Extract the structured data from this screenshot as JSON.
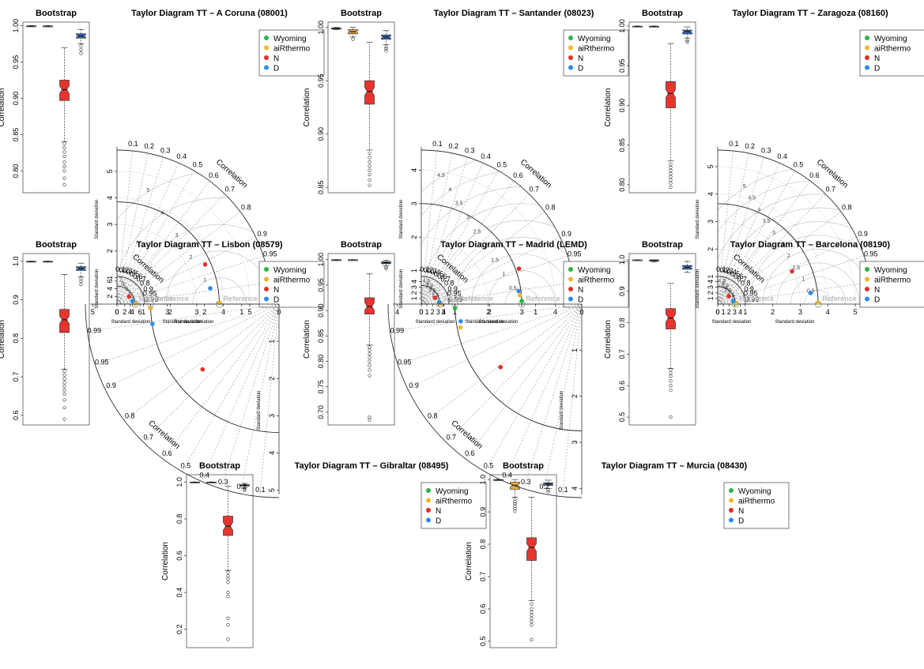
{
  "figure": {
    "palette": {
      "wyoming": "#2ab34a",
      "airthermo": "#f3b52a",
      "n": "#e0302c",
      "d": "#2b8ce6",
      "box_red": "#e8342f",
      "box_blue": "#2f66b5",
      "box_orange": "#f2a83a",
      "grid": "#c8c8c8"
    },
    "legend": [
      {
        "key": "wyoming",
        "label": "Wyoming"
      },
      {
        "key": "airthermo",
        "label": "aiRthermo"
      },
      {
        "key": "n",
        "label": "N"
      },
      {
        "key": "d",
        "label": "D"
      }
    ]
  },
  "chart_data": [
    {
      "type": "box",
      "title": "Bootstrap",
      "ylabel": "Correlation",
      "ylim": [
        0.77,
        1.005
      ],
      "yticks": [
        0.8,
        0.85,
        0.9,
        0.95,
        1.0
      ],
      "boxes": [
        {
          "name": "Wyoming",
          "color": "#ffffff",
          "q1": 0.9995,
          "median": 0.9997,
          "q3": 0.9999,
          "whisker_low": 0.999,
          "whisker_high": 1.0
        },
        {
          "name": "aiRthermo",
          "color": "#ffffff",
          "q1": 0.9994,
          "median": 0.9996,
          "q3": 0.9998,
          "whisker_low": 0.999,
          "whisker_high": 1.0
        },
        {
          "name": "N",
          "color": "#e8342f",
          "q1": 0.897,
          "median": 0.912,
          "q3": 0.925,
          "whisker_low": 0.84,
          "whisker_high": 0.97,
          "outliers": [
            0.838,
            0.832,
            0.826,
            0.82,
            0.812,
            0.806,
            0.8,
            0.79,
            0.781
          ]
        },
        {
          "name": "D",
          "color": "#2f66b5",
          "q1": 0.983,
          "median": 0.986,
          "q3": 0.989,
          "whisker_low": 0.975,
          "whisker_high": 0.995,
          "outliers": [
            0.972,
            0.967,
            0.962
          ]
        }
      ]
    },
    {
      "type": "taylor",
      "title": "Taylor Diagram TT – A Coruna (08001)",
      "xlabel": "Standard deviation",
      "ylabel": "Standard deviation",
      "max_sd": 5.8,
      "sd_ticks": [
        0,
        1,
        2,
        3,
        4,
        5
      ],
      "reference_sd": 3.85,
      "rmsd_labels": [
        1,
        2,
        3,
        4,
        5
      ],
      "reference_label": "Reference",
      "correlation_label": "Correlation",
      "points": [
        {
          "series": "Wyoming",
          "sd": 3.84,
          "cor": 0.9999
        },
        {
          "series": "aiRthermo",
          "sd": 3.85,
          "cor": 0.9999
        },
        {
          "series": "N",
          "sd": 3.64,
          "cor": 0.912
        },
        {
          "series": "D",
          "sd": 3.56,
          "cor": 0.986
        }
      ]
    },
    {
      "type": "box",
      "title": "Bootstrap",
      "ylabel": "Correlation",
      "ylim": [
        0.845,
        1.005
      ],
      "yticks": [
        0.85,
        0.9,
        0.95,
        1.0
      ],
      "boxes": [
        {
          "name": "Wyoming",
          "color": "#ffffff",
          "q1": 0.9985,
          "median": 0.999,
          "q3": 0.9995,
          "whisker_low": 0.998,
          "whisker_high": 1.0
        },
        {
          "name": "aiRthermo",
          "color": "#f2a83a",
          "q1": 0.994,
          "median": 0.996,
          "q3": 0.998,
          "whisker_low": 0.991,
          "whisker_high": 1.0,
          "outliers": [
            0.989
          ]
        },
        {
          "name": "N",
          "color": "#e8342f",
          "q1": 0.928,
          "median": 0.94,
          "q3": 0.95,
          "whisker_low": 0.885,
          "whisker_high": 0.986,
          "outliers": [
            0.882,
            0.878,
            0.874,
            0.87,
            0.866,
            0.862,
            0.857,
            0.852
          ]
        },
        {
          "name": "D",
          "color": "#2f66b5",
          "q1": 0.989,
          "median": 0.991,
          "q3": 0.993,
          "whisker_low": 0.984,
          "whisker_high": 0.997,
          "outliers": [
            0.982,
            0.98,
            0.978
          ]
        }
      ]
    },
    {
      "type": "taylor",
      "title": "Taylor Diagram TT – Santander (08023)",
      "xlabel": "Standard deviation",
      "ylabel": "Standard deviation",
      "max_sd": 4.6,
      "sd_ticks": [
        0,
        1,
        2,
        3,
        4
      ],
      "reference_sd": 3.0,
      "rmsd_labels": [
        0.5,
        1,
        1.5,
        2,
        2.5,
        3,
        3.5,
        4,
        4.5
      ],
      "reference_label": "Reference",
      "correlation_label": "Correlation",
      "points": [
        {
          "series": "Wyoming",
          "sd": 3.0,
          "cor": 0.9995
        },
        {
          "series": "aiRthermo",
          "sd": 2.95,
          "cor": 0.996
        },
        {
          "series": "N",
          "sd": 3.1,
          "cor": 0.94
        },
        {
          "series": "D",
          "sd": 2.93,
          "cor": 0.991
        }
      ]
    },
    {
      "type": "box",
      "title": "Bootstrap",
      "ylabel": "Correlation",
      "ylim": [
        0.79,
        1.005
      ],
      "yticks": [
        0.8,
        0.85,
        0.9,
        0.95,
        1.0
      ],
      "boxes": [
        {
          "name": "Wyoming",
          "color": "#ffffff",
          "q1": 0.9995,
          "median": 0.9997,
          "q3": 0.9999,
          "whisker_low": 0.999,
          "whisker_high": 1.0
        },
        {
          "name": "aiRthermo",
          "color": "#ffffff",
          "q1": 0.9994,
          "median": 0.9996,
          "q3": 0.9998,
          "whisker_low": 0.999,
          "whisker_high": 1.0
        },
        {
          "name": "N",
          "color": "#e8342f",
          "q1": 0.897,
          "median": 0.915,
          "q3": 0.93,
          "whisker_low": 0.83,
          "whisker_high": 0.978,
          "outliers": [
            0.826,
            0.822,
            0.818,
            0.814,
            0.81,
            0.806,
            0.802,
            0.797
          ]
        },
        {
          "name": "D",
          "color": "#2f66b5",
          "q1": 0.99,
          "median": 0.993,
          "q3": 0.995,
          "whisker_low": 0.985,
          "whisker_high": 0.999,
          "outliers": [
            0.982,
            0.98
          ]
        }
      ]
    },
    {
      "type": "taylor",
      "title": "Taylor Diagram TT – Zaragoza (08160)",
      "xlabel": "Standard deviation",
      "ylabel": "Standard deviation",
      "max_sd": 5.6,
      "sd_ticks": [
        0,
        1,
        2,
        3,
        4,
        5
      ],
      "reference_sd": 3.65,
      "rmsd_labels": [
        0.5,
        1,
        1.5,
        2,
        2.5,
        3,
        3.5,
        4,
        4.5,
        5
      ],
      "reference_label": "Reference",
      "correlation_label": "Correlation",
      "points": [
        {
          "series": "Wyoming",
          "sd": 3.65,
          "cor": 0.9999
        },
        {
          "series": "aiRthermo",
          "sd": 3.66,
          "cor": 0.9999
        },
        {
          "series": "N",
          "sd": 2.95,
          "cor": 0.915
        },
        {
          "series": "D",
          "sd": 3.4,
          "cor": 0.993
        }
      ]
    },
    {
      "type": "box",
      "title": "Bootstrap",
      "ylabel": "Correlation",
      "ylim": [
        0.575,
        1.02
      ],
      "yticks": [
        0.6,
        0.7,
        0.8,
        0.9,
        1.0
      ],
      "boxes": [
        {
          "name": "Wyoming",
          "color": "#ffffff",
          "q1": 0.999,
          "median": 0.9995,
          "q3": 1.0,
          "whisker_low": 0.998,
          "whisker_high": 1.0
        },
        {
          "name": "aiRthermo",
          "color": "#ffffff",
          "q1": 0.999,
          "median": 0.9995,
          "q3": 1.0,
          "whisker_low": 0.998,
          "whisker_high": 1.0
        },
        {
          "name": "N",
          "color": "#e8342f",
          "q1": 0.815,
          "median": 0.848,
          "q3": 0.875,
          "whisker_low": 0.72,
          "whisker_high": 0.966,
          "outliers": [
            0.715,
            0.705,
            0.695,
            0.685,
            0.675,
            0.665,
            0.655,
            0.64,
            0.62,
            0.59
          ]
        },
        {
          "name": "D",
          "color": "#2f66b5",
          "q1": 0.976,
          "median": 0.981,
          "q3": 0.986,
          "whisker_low": 0.96,
          "whisker_high": 0.995,
          "outliers": [
            0.955,
            0.948,
            0.94
          ]
        }
      ]
    },
    {
      "type": "taylor",
      "title": "Taylor Diagram TT – Lisbon (08579)",
      "xlabel": "Standard deviation",
      "ylabel": "Standard deviation",
      "max_sd": 7.2,
      "sd_ticks": [
        0,
        2,
        4,
        6
      ],
      "reference_sd": 4.7,
      "rmsd_labels": [
        1,
        2,
        3,
        4,
        5,
        6,
        7
      ],
      "reference_label": "Reference",
      "correlation_label": "Correlation",
      "points": [
        {
          "series": "Wyoming",
          "sd": 4.7,
          "cor": 0.9995
        },
        {
          "series": "aiRthermo",
          "sd": 4.71,
          "cor": 0.9995
        },
        {
          "series": "N",
          "sd": 3.68,
          "cor": 0.848
        },
        {
          "series": "D",
          "sd": 4.08,
          "cor": 0.981
        }
      ]
    },
    {
      "type": "box",
      "title": "Bootstrap",
      "ylabel": "Correlation",
      "ylim": [
        0.675,
        1.012
      ],
      "yticks": [
        0.7,
        0.75,
        0.8,
        0.85,
        0.9,
        0.95,
        1.0
      ],
      "boxes": [
        {
          "name": "Wyoming",
          "color": "#ffffff",
          "q1": 0.9995,
          "median": 0.9997,
          "q3": 0.9999,
          "whisker_low": 0.999,
          "whisker_high": 1.0
        },
        {
          "name": "aiRthermo",
          "color": "#ffffff",
          "q1": 0.9994,
          "median": 0.9996,
          "q3": 0.9998,
          "whisker_low": 0.999,
          "whisker_high": 1.0
        },
        {
          "name": "N",
          "color": "#e8342f",
          "q1": 0.893,
          "median": 0.908,
          "q3": 0.925,
          "whisker_low": 0.832,
          "whisker_high": 0.972,
          "outliers": [
            0.828,
            0.822,
            0.815,
            0.808,
            0.8,
            0.792,
            0.783,
            0.772,
            0.69,
            0.685
          ]
        },
        {
          "name": "D",
          "color": "#2f66b5",
          "q1": 0.992,
          "median": 0.994,
          "q3": 0.996,
          "whisker_low": 0.988,
          "whisker_high": 0.999,
          "outliers": [
            0.985,
            0.982
          ]
        }
      ]
    },
    {
      "type": "taylor",
      "title": "Taylor Diagram TT – Madrid (LEMD)",
      "xlabel": "Standard deviation",
      "ylabel": "Standard deviation",
      "max_sd": 4.9,
      "sd_ticks": [
        0,
        1,
        2,
        3,
        4
      ],
      "reference_sd": 3.3,
      "rmsd_labels": [
        0.5,
        1,
        1.5,
        2,
        2.5,
        3,
        3.5,
        4,
        4.5
      ],
      "reference_label": "Reference",
      "correlation_label": "Correlation",
      "points": [
        {
          "series": "Wyoming",
          "sd": 3.3,
          "cor": 0.9997
        },
        {
          "series": "aiRthermo",
          "sd": 3.31,
          "cor": 0.9997
        },
        {
          "series": "N",
          "sd": 2.65,
          "cor": 0.908
        },
        {
          "series": "D",
          "sd": 3.2,
          "cor": 0.994
        }
      ]
    },
    {
      "type": "box",
      "title": "Bootstrap",
      "ylabel": "Correlation",
      "ylim": [
        0.475,
        1.02
      ],
      "yticks": [
        0.5,
        0.6,
        0.7,
        0.8,
        0.9,
        1.0
      ],
      "boxes": [
        {
          "name": "Wyoming",
          "color": "#ffffff",
          "q1": 0.999,
          "median": 0.9995,
          "q3": 1.0,
          "whisker_low": 0.998,
          "whisker_high": 1.0
        },
        {
          "name": "aiRthermo",
          "color": "#ffffff",
          "q1": 0.996,
          "median": 0.998,
          "q3": 0.9995,
          "whisker_low": 0.993,
          "whisker_high": 1.0
        },
        {
          "name": "N",
          "color": "#e8342f",
          "q1": 0.78,
          "median": 0.815,
          "q3": 0.845,
          "whisker_low": 0.655,
          "whisker_high": 0.925,
          "outliers": [
            0.65,
            0.64,
            0.63,
            0.615,
            0.6,
            0.585,
            0.5
          ]
        },
        {
          "name": "D",
          "color": "#2f66b5",
          "q1": 0.97,
          "median": 0.976,
          "q3": 0.982,
          "whisker_low": 0.96,
          "whisker_high": 0.995
        }
      ]
    },
    {
      "type": "taylor",
      "title": "Taylor Diagram TT – Barcelona (08190)",
      "xlabel": "Standard deviation",
      "ylabel": "Standard deviation",
      "max_sd": 4.9,
      "sd_ticks": [
        0,
        1,
        2,
        3,
        4
      ],
      "reference_sd": 3.15,
      "rmsd_labels": [
        0.5,
        1,
        1.5,
        2,
        2.5,
        3,
        3.5,
        4,
        4.5
      ],
      "reference_label": "Reference",
      "correlation_label": "Correlation",
      "points": [
        {
          "series": "Wyoming",
          "sd": 3.15,
          "cor": 0.9995
        },
        {
          "series": "aiRthermo",
          "sd": 3.14,
          "cor": 0.998
        },
        {
          "series": "N",
          "sd": 2.4,
          "cor": 0.815
        },
        {
          "series": "D",
          "sd": 2.8,
          "cor": 0.983
        }
      ]
    },
    {
      "type": "box",
      "title": "Bootstrap",
      "ylabel": "Correlation",
      "ylim": [
        0.1,
        1.04
      ],
      "yticks": [
        0.2,
        0.4,
        0.6,
        0.8,
        1.0
      ],
      "boxes": [
        {
          "name": "Wyoming",
          "color": "#ffffff",
          "q1": 0.999,
          "median": 0.9995,
          "q3": 1.0,
          "whisker_low": 0.998,
          "whisker_high": 1.0
        },
        {
          "name": "aiRthermo",
          "color": "#ffffff",
          "q1": 0.999,
          "median": 0.9995,
          "q3": 1.0,
          "whisker_low": 0.998,
          "whisker_high": 1.0
        },
        {
          "name": "N",
          "color": "#e8342f",
          "q1": 0.71,
          "median": 0.76,
          "q3": 0.815,
          "whisker_low": 0.52,
          "whisker_high": 0.978,
          "outliers": [
            0.51,
            0.49,
            0.475,
            0.455,
            0.4,
            0.38,
            0.26,
            0.225,
            0.145
          ]
        },
        {
          "name": "D",
          "color": "#2f66b5",
          "q1": 0.978,
          "median": 0.982,
          "q3": 0.986,
          "whisker_low": 0.97,
          "whisker_high": 0.993,
          "outliers": [
            0.962,
            0.955
          ]
        }
      ]
    },
    {
      "type": "taylor",
      "title": "Taylor Diagram TT – Gibraltar (08495)",
      "xlabel": "Standard deviation",
      "ylabel": "Standard deviation",
      "max_sd": 5.2,
      "sd_ticks": [
        0,
        1,
        2,
        3,
        4,
        5
      ],
      "reference_sd": 3.45,
      "rmsd_labels": [
        0.5,
        1,
        1.5,
        2,
        2.5,
        3,
        3.5,
        4,
        4.5,
        5
      ],
      "reference_label": "Reference",
      "correlation_label": "Correlation",
      "points": [
        {
          "series": "Wyoming",
          "sd": 3.45,
          "cor": 0.9995
        },
        {
          "series": "aiRthermo",
          "sd": 3.46,
          "cor": 0.9995
        },
        {
          "series": "N",
          "sd": 2.7,
          "cor": 0.76
        },
        {
          "series": "D",
          "sd": 3.44,
          "cor": 0.988
        }
      ]
    },
    {
      "type": "box",
      "title": "Bootstrap",
      "ylabel": "Correlation",
      "ylim": [
        0.48,
        1.015
      ],
      "yticks": [
        0.5,
        0.6,
        0.7,
        0.8,
        0.9,
        1.0
      ],
      "boxes": [
        {
          "name": "Wyoming",
          "color": "#ffffff",
          "q1": 0.999,
          "median": 0.9995,
          "q3": 1.0,
          "whisker_low": 0.998,
          "whisker_high": 1.0
        },
        {
          "name": "aiRthermo",
          "color": "#f2a83a",
          "q1": 0.97,
          "median": 0.982,
          "q3": 0.992,
          "whisker_low": 0.945,
          "whisker_high": 1.0,
          "outliers": [
            0.94,
            0.932,
            0.925,
            0.918,
            0.91,
            0.902
          ]
        },
        {
          "name": "N",
          "color": "#e8342f",
          "q1": 0.75,
          "median": 0.79,
          "q3": 0.82,
          "whisker_low": 0.625,
          "whisker_high": 0.945,
          "outliers": [
            0.615,
            0.6,
            0.59,
            0.58,
            0.57,
            0.56,
            0.55,
            0.505
          ]
        },
        {
          "name": "D",
          "color": "#2f66b5",
          "q1": 0.982,
          "median": 0.986,
          "q3": 0.99,
          "whisker_low": 0.972,
          "whisker_high": 0.998,
          "outliers": [
            0.968,
            0.962
          ]
        }
      ]
    },
    {
      "type": "taylor",
      "title": "Taylor Diagram TT – Murcia (08430)",
      "xlabel": "Standard deviation",
      "ylabel": "Standard deviation",
      "max_sd": 4.2,
      "sd_ticks": [
        0,
        1,
        2,
        3,
        4
      ],
      "reference_sd": 2.75,
      "rmsd_labels": [
        0.5,
        1,
        1.5,
        2,
        2.5,
        3,
        3.5,
        4
      ],
      "reference_label": "Reference",
      "correlation_label": "Correlation",
      "points": [
        {
          "series": "Wyoming",
          "sd": 2.75,
          "cor": 0.9995
        },
        {
          "series": "aiRthermo",
          "sd": 2.68,
          "cor": 0.982
        },
        {
          "series": "N",
          "sd": 2.23,
          "cor": 0.79
        },
        {
          "series": "D",
          "sd": 2.65,
          "cor": 0.99
        }
      ]
    }
  ]
}
